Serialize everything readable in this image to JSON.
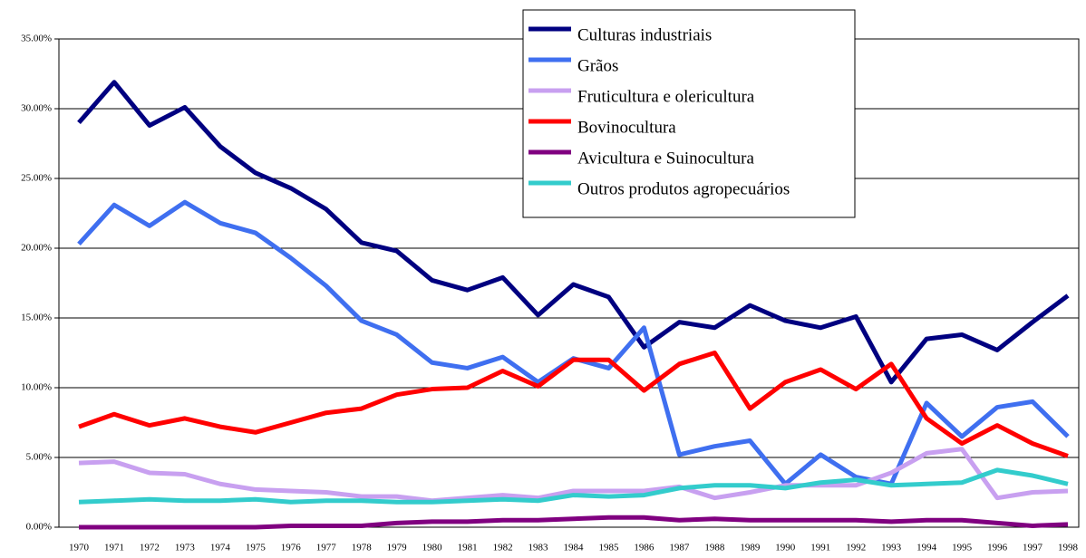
{
  "chart_data": {
    "type": "line",
    "categories": [
      "1970",
      "1971",
      "1972",
      "1973",
      "1974",
      "1975",
      "1976",
      "1977",
      "1978",
      "1979",
      "1980",
      "1981",
      "1982",
      "1983",
      "1984",
      "1985",
      "1986",
      "1987",
      "1988",
      "1989",
      "1990",
      "1991",
      "1992",
      "1993",
      "1994",
      "1995",
      "1996",
      "1997",
      "1998"
    ],
    "ylim": [
      0,
      35
    ],
    "yticks": [
      {
        "value": 0,
        "label": "0.00%"
      },
      {
        "value": 5,
        "label": "5.00%"
      },
      {
        "value": 10,
        "label": "10.00%"
      },
      {
        "value": 15,
        "label": "15.00%"
      },
      {
        "value": 20,
        "label": "20.00%"
      },
      {
        "value": 25,
        "label": "25.00%"
      },
      {
        "value": 30,
        "label": "30.00%"
      },
      {
        "value": 35,
        "label": "35.00%"
      }
    ],
    "grid": true,
    "legend": "top-right",
    "series": [
      {
        "name": "Culturas industriais",
        "color": "#000080",
        "values": [
          29.0,
          31.9,
          28.8,
          30.1,
          27.3,
          25.4,
          24.3,
          22.8,
          20.4,
          19.8,
          17.7,
          17.0,
          17.9,
          15.2,
          17.4,
          16.5,
          12.9,
          14.7,
          14.3,
          15.9,
          14.8,
          14.3,
          15.1,
          10.4,
          13.5,
          13.8,
          12.7,
          14.7,
          16.6
        ]
      },
      {
        "name": "Grãos",
        "color": "#3f6ff0",
        "values": [
          20.3,
          23.1,
          21.6,
          23.3,
          21.8,
          21.1,
          19.3,
          17.3,
          14.8,
          13.8,
          11.8,
          11.4,
          12.2,
          10.4,
          12.1,
          11.4,
          14.3,
          5.2,
          5.8,
          6.2,
          3.1,
          5.2,
          3.6,
          3.1,
          8.9,
          6.5,
          8.6,
          9.0,
          6.5
        ]
      },
      {
        "name": "Fruticultura e olericultura",
        "color": "#c8a0f0",
        "values": [
          4.6,
          4.7,
          3.9,
          3.8,
          3.1,
          2.7,
          2.6,
          2.5,
          2.2,
          2.2,
          1.9,
          2.1,
          2.3,
          2.1,
          2.6,
          2.6,
          2.6,
          2.9,
          2.1,
          2.5,
          3.0,
          3.0,
          3.0,
          3.9,
          5.3,
          5.6,
          2.1,
          2.5,
          2.6
        ]
      },
      {
        "name": "Bovinocultura",
        "color": "#ff0000",
        "values": [
          7.2,
          8.1,
          7.3,
          7.8,
          7.2,
          6.8,
          7.5,
          8.2,
          8.5,
          9.5,
          9.9,
          10.0,
          11.2,
          10.1,
          12.0,
          12.0,
          9.8,
          11.7,
          12.5,
          8.5,
          10.4,
          11.3,
          9.9,
          11.7,
          7.8,
          6.0,
          7.3,
          6.0,
          5.1
        ]
      },
      {
        "name": "Avicultura e Suinocultura",
        "color": "#800080",
        "values": [
          0.0,
          0.0,
          0.0,
          0.0,
          0.0,
          0.0,
          0.1,
          0.1,
          0.1,
          0.3,
          0.4,
          0.4,
          0.5,
          0.5,
          0.6,
          0.7,
          0.7,
          0.5,
          0.6,
          0.5,
          0.5,
          0.5,
          0.5,
          0.4,
          0.5,
          0.5,
          0.3,
          0.1,
          0.2
        ]
      },
      {
        "name": "Outros produtos agropecuários",
        "color": "#33cccc",
        "values": [
          1.8,
          1.9,
          2.0,
          1.9,
          1.9,
          2.0,
          1.8,
          1.9,
          1.9,
          1.8,
          1.8,
          1.9,
          2.0,
          1.9,
          2.3,
          2.2,
          2.3,
          2.8,
          3.0,
          3.0,
          2.8,
          3.2,
          3.4,
          3.0,
          3.1,
          3.2,
          4.1,
          3.7,
          3.1
        ]
      }
    ]
  }
}
